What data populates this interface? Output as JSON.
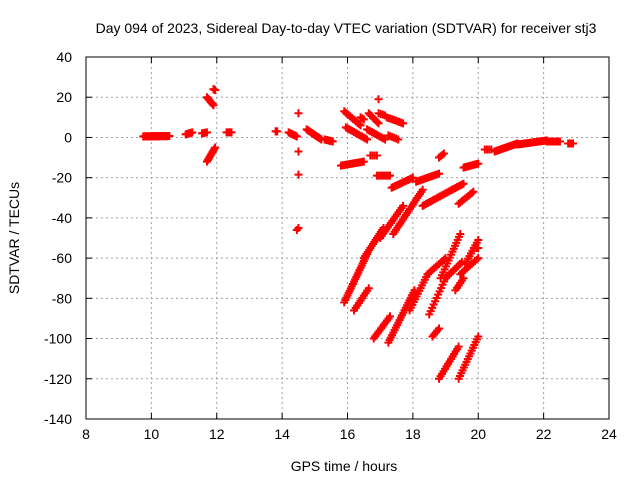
{
  "chart_data": {
    "type": "scatter",
    "title": "Day 094 of 2023, Sidereal Day-to-day VTEC variation (SDTVAR) for receiver stj3",
    "xlabel": "GPS time / hours",
    "ylabel": "SDTVAR / TECUs",
    "xlim": [
      8,
      24
    ],
    "ylim": [
      -140,
      40
    ],
    "xticks": [
      "8",
      "10",
      "12",
      "14",
      "16",
      "18",
      "20",
      "22",
      "24"
    ],
    "yticks": [
      "40",
      "20",
      "0",
      "-20",
      "-40",
      "-60",
      "-80",
      "-100",
      "-120",
      "-140"
    ],
    "grid": true,
    "marker": "+",
    "color": "#ff0000",
    "segments": [
      {
        "x0": 9.75,
        "y0": 0.5,
        "x1": 10.55,
        "y1": 0.7,
        "n": 40
      },
      {
        "x0": 11.05,
        "y0": 1.5,
        "x1": 11.25,
        "y1": 2.5,
        "n": 8
      },
      {
        "x0": 11.55,
        "y0": 2.0,
        "x1": 11.7,
        "y1": 2.5,
        "n": 5
      },
      {
        "x0": 12.3,
        "y0": 2.5,
        "x1": 12.45,
        "y1": 2.5,
        "n": 5
      },
      {
        "x0": 11.7,
        "y0": 20.0,
        "x1": 11.9,
        "y1": 16.0,
        "n": 8
      },
      {
        "x0": 11.9,
        "y0": 24.0,
        "x1": 11.95,
        "y1": 23.5,
        "n": 3
      },
      {
        "x0": 11.7,
        "y0": -12.0,
        "x1": 11.95,
        "y1": -5.0,
        "n": 10
      },
      {
        "x0": 13.8,
        "y0": 3.0,
        "x1": 13.85,
        "y1": 3.0,
        "n": 3
      },
      {
        "x0": 14.2,
        "y0": 2.5,
        "x1": 14.45,
        "y1": 0.5,
        "n": 8
      },
      {
        "x0": 14.75,
        "y0": 4.0,
        "x1": 15.2,
        "y1": -1.0,
        "n": 15
      },
      {
        "x0": 15.3,
        "y0": -1.0,
        "x1": 15.55,
        "y1": -2.0,
        "n": 8
      },
      {
        "x0": 14.5,
        "y0": 12.0,
        "x1": 14.5,
        "y1": 12.0,
        "n": 1
      },
      {
        "x0": 14.5,
        "y0": -7.0,
        "x1": 14.5,
        "y1": -7.0,
        "n": 1
      },
      {
        "x0": 14.5,
        "y0": -18.5,
        "x1": 14.5,
        "y1": -18.5,
        "n": 1
      },
      {
        "x0": 14.45,
        "y0": -46.0,
        "x1": 14.5,
        "y1": -45.0,
        "n": 2
      },
      {
        "x0": 15.9,
        "y0": 13.0,
        "x1": 16.4,
        "y1": 6.0,
        "n": 12
      },
      {
        "x0": 16.4,
        "y0": 10.0,
        "x1": 16.5,
        "y1": 9.0,
        "n": 3
      },
      {
        "x0": 15.95,
        "y0": 5.0,
        "x1": 16.6,
        "y1": -1.0,
        "n": 14
      },
      {
        "x0": 16.65,
        "y0": 12.0,
        "x1": 16.95,
        "y1": 7.0,
        "n": 8
      },
      {
        "x0": 16.95,
        "y0": 19.0,
        "x1": 16.95,
        "y1": 19.0,
        "n": 1
      },
      {
        "x0": 16.95,
        "y0": 12.0,
        "x1": 17.15,
        "y1": 11.0,
        "n": 4
      },
      {
        "x0": 17.2,
        "y0": 10.0,
        "x1": 17.7,
        "y1": 7.0,
        "n": 10
      },
      {
        "x0": 16.6,
        "y0": 4.0,
        "x1": 17.15,
        "y1": -1.0,
        "n": 12
      },
      {
        "x0": 17.25,
        "y0": 1.0,
        "x1": 17.55,
        "y1": -1.0,
        "n": 6
      },
      {
        "x0": 15.8,
        "y0": -14.0,
        "x1": 16.5,
        "y1": -12.0,
        "n": 14
      },
      {
        "x0": 16.7,
        "y0": -9.0,
        "x1": 16.9,
        "y1": -9.0,
        "n": 4
      },
      {
        "x0": 16.9,
        "y0": -19.0,
        "x1": 17.3,
        "y1": -19.0,
        "n": 8
      },
      {
        "x0": 17.35,
        "y0": -25.0,
        "x1": 18.0,
        "y1": -20.0,
        "n": 14
      },
      {
        "x0": 18.1,
        "y0": -22.0,
        "x1": 18.8,
        "y1": -18.0,
        "n": 14
      },
      {
        "x0": 18.8,
        "y0": -10.0,
        "x1": 18.95,
        "y1": -8.0,
        "n": 4
      },
      {
        "x0": 18.3,
        "y0": -34.0,
        "x1": 19.2,
        "y1": -26.0,
        "n": 18
      },
      {
        "x0": 19.2,
        "y0": -26.0,
        "x1": 19.55,
        "y1": -23.0,
        "n": 8
      },
      {
        "x0": 19.4,
        "y0": -33.0,
        "x1": 19.85,
        "y1": -27.0,
        "n": 10
      },
      {
        "x0": 19.55,
        "y0": -15.0,
        "x1": 20.0,
        "y1": -13.0,
        "n": 10
      },
      {
        "x0": 20.2,
        "y0": -6.0,
        "x1": 20.4,
        "y1": -6.0,
        "n": 4
      },
      {
        "x0": 20.5,
        "y0": -7.0,
        "x1": 21.2,
        "y1": -3.0,
        "n": 20
      },
      {
        "x0": 21.2,
        "y0": -3.5,
        "x1": 22.1,
        "y1": -1.5,
        "n": 22
      },
      {
        "x0": 22.1,
        "y0": -2.0,
        "x1": 22.5,
        "y1": -2.0,
        "n": 10
      },
      {
        "x0": 22.75,
        "y0": -3.0,
        "x1": 22.9,
        "y1": -3.0,
        "n": 4
      },
      {
        "x0": 15.9,
        "y0": -82.0,
        "x1": 16.6,
        "y1": -58.0,
        "n": 22
      },
      {
        "x0": 16.5,
        "y0": -60.0,
        "x1": 17.1,
        "y1": -45.0,
        "n": 16
      },
      {
        "x0": 17.0,
        "y0": -50.0,
        "x1": 17.7,
        "y1": -34.0,
        "n": 16
      },
      {
        "x0": 17.4,
        "y0": -48.0,
        "x1": 18.3,
        "y1": -26.0,
        "n": 22
      },
      {
        "x0": 16.2,
        "y0": -86.0,
        "x1": 16.65,
        "y1": -75.0,
        "n": 10
      },
      {
        "x0": 16.8,
        "y0": -100.0,
        "x1": 17.3,
        "y1": -89.0,
        "n": 12
      },
      {
        "x0": 17.25,
        "y0": -102.0,
        "x1": 18.05,
        "y1": -76.0,
        "n": 22
      },
      {
        "x0": 17.9,
        "y0": -86.0,
        "x1": 18.45,
        "y1": -68.0,
        "n": 14
      },
      {
        "x0": 18.45,
        "y0": -68.0,
        "x1": 19.0,
        "y1": -60.0,
        "n": 12
      },
      {
        "x0": 18.85,
        "y0": -70.0,
        "x1": 19.45,
        "y1": -48.0,
        "n": 16
      },
      {
        "x0": 18.5,
        "y0": -88.0,
        "x1": 19.0,
        "y1": -70.0,
        "n": 12
      },
      {
        "x0": 19.0,
        "y0": -70.0,
        "x1": 19.5,
        "y1": -62.0,
        "n": 10
      },
      {
        "x0": 19.3,
        "y0": -76.0,
        "x1": 19.55,
        "y1": -70.0,
        "n": 6
      },
      {
        "x0": 19.45,
        "y0": -68.0,
        "x1": 20.0,
        "y1": -60.0,
        "n": 12
      },
      {
        "x0": 19.6,
        "y0": -63.0,
        "x1": 20.0,
        "y1": -51.0,
        "n": 10
      },
      {
        "x0": 19.95,
        "y0": -55.0,
        "x1": 20.0,
        "y1": -55.0,
        "n": 2
      },
      {
        "x0": 18.6,
        "y0": -99.0,
        "x1": 18.8,
        "y1": -95.0,
        "n": 5
      },
      {
        "x0": 18.8,
        "y0": -120.0,
        "x1": 19.4,
        "y1": -104.0,
        "n": 14
      },
      {
        "x0": 19.4,
        "y0": -120.0,
        "x1": 20.0,
        "y1": -99.0,
        "n": 16
      }
    ]
  }
}
